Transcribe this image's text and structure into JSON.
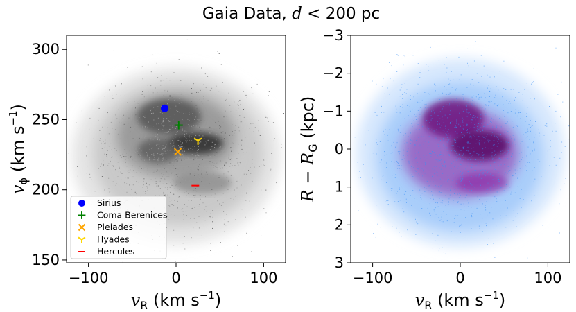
{
  "figure": {
    "title_prefix": "Gaia Data,",
    "title_var": "d",
    "title_rest": " < 200 pc"
  },
  "chart_data": [
    {
      "type": "scatter",
      "xlabel": "v_R (km s^-1)",
      "ylabel": "v_phi (km s^-1)",
      "xlim": [
        -125,
        125
      ],
      "ylim": [
        148,
        310
      ],
      "xticks": [
        -100,
        0,
        100
      ],
      "yticks": [
        150,
        200,
        250,
        300
      ],
      "background_color": "#555555",
      "grid": false,
      "legend_position": "lower-left",
      "series": [
        {
          "name": "Sirius",
          "marker": "circle",
          "color": "#0000ff",
          "x": -13,
          "y": 258
        },
        {
          "name": "Coma Berenices",
          "marker": "plus",
          "color": "#008000",
          "x": 3,
          "y": 246
        },
        {
          "name": "Pleiades",
          "marker": "x",
          "color": "#ffa500",
          "x": 2,
          "y": 227
        },
        {
          "name": "Hyades",
          "marker": "tri-down",
          "color": "#ffd700",
          "x": 25,
          "y": 235
        },
        {
          "name": "Hercules",
          "marker": "hline",
          "color": "#ff0000",
          "x": 22,
          "y": 203
        }
      ]
    },
    {
      "type": "scatter",
      "xlabel": "v_R (km s^-1)",
      "ylabel": "R - R_G (kpc)",
      "xlim": [
        -125,
        125
      ],
      "ylim": [
        3,
        -3
      ],
      "xticks": [
        -100,
        0,
        100
      ],
      "yticks": [
        -3,
        -2,
        -1,
        0,
        1,
        2,
        3
      ],
      "point_color": "#3b8ff5",
      "dense_color": "#8b1a9e",
      "grid": false
    }
  ],
  "labels": {
    "left_x_label": "v",
    "left_x_sub": "R",
    "left_x_unit": " (km s",
    "left_x_exp": "−1",
    "left_x_close": ")",
    "left_y_label": "v",
    "left_y_sub": "ϕ",
    "left_y_unit": " (km s",
    "left_y_exp": "−1",
    "left_y_close": ")",
    "right_x_label": "v",
    "right_x_sub": "R",
    "right_x_unit": " (km s",
    "right_x_exp": "−1",
    "right_x_close": ")",
    "right_y_R": "R",
    "right_y_minus": " − ",
    "right_y_RG": "R",
    "right_y_G": "G",
    "right_y_unit": " (kpc)"
  },
  "tick_labels": {
    "left_x": [
      "−100",
      "0",
      "100"
    ],
    "left_y": [
      "150",
      "200",
      "250",
      "300"
    ],
    "right_x": [
      "−100",
      "0",
      "100"
    ],
    "right_y": [
      "−3",
      "−2",
      "−1",
      "0",
      "1",
      "2",
      "3"
    ]
  }
}
